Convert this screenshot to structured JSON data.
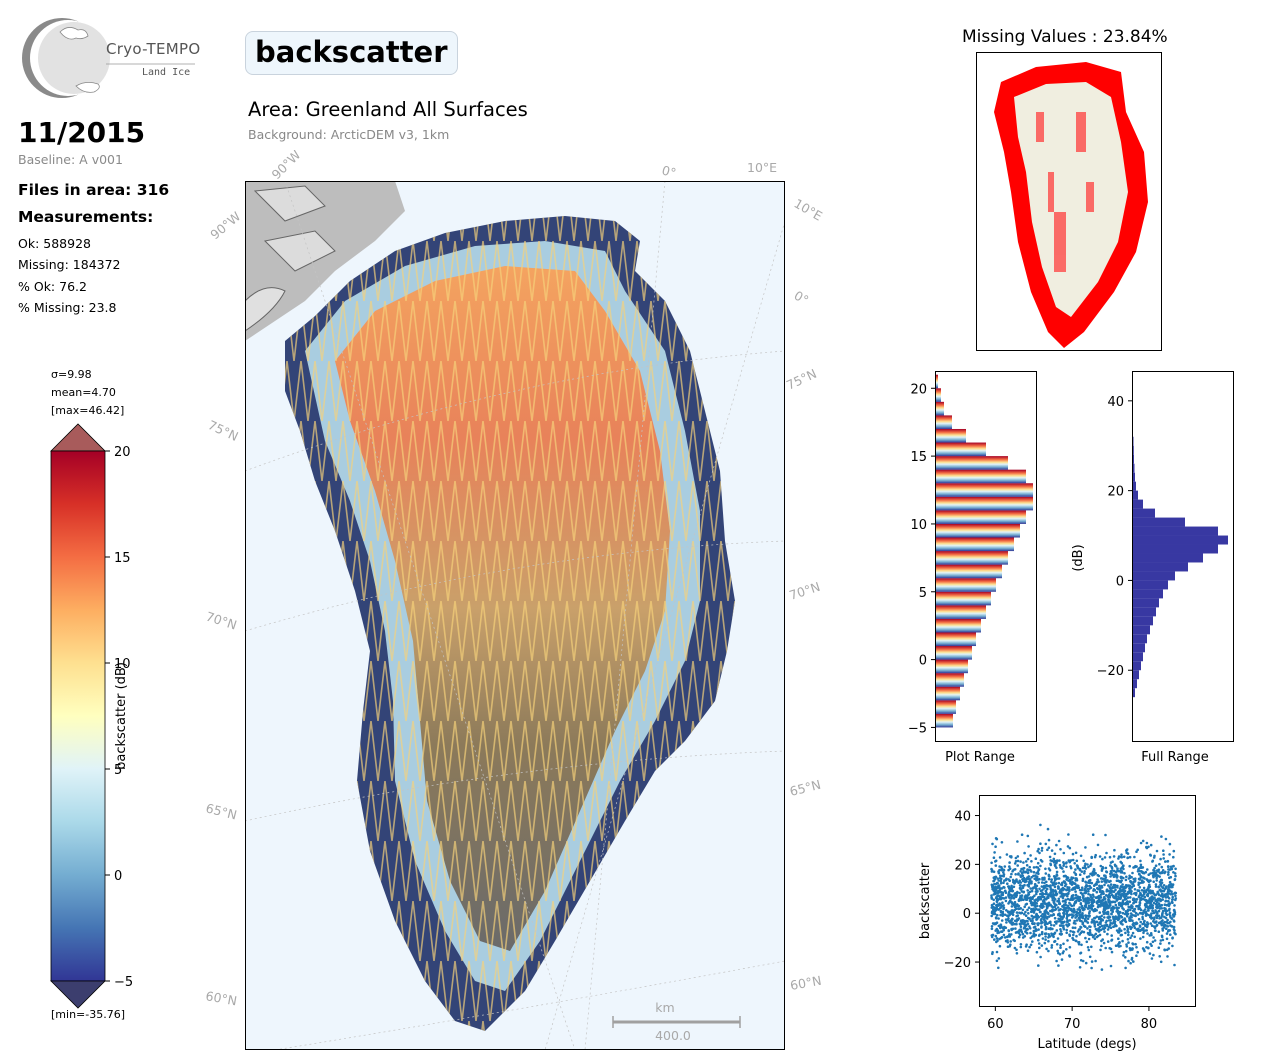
{
  "logo": {
    "title": "Cryo-TEMPO",
    "subtitle": "Land Ice"
  },
  "header": {
    "date": "11/2015",
    "baseline": "Baseline: A v001",
    "files_in_area": "Files in area: 316",
    "measurements_label": "Measurements:",
    "stats": [
      "Ok: 588928",
      "Missing: 184372",
      "% Ok: 76.2",
      "% Missing: 23.8"
    ]
  },
  "title": {
    "parameter": "backscatter",
    "area": "Area: Greenland All Surfaces",
    "background": "Background: ArcticDEM v3, 1km"
  },
  "map": {
    "graticule_labels": [
      "90°W",
      "90°W",
      "0°",
      "10°E",
      "10°E",
      "0°",
      "75°N",
      "75°N",
      "70°N",
      "70°N",
      "65°N",
      "65°N",
      "60°N",
      "60°N"
    ],
    "scalebar": {
      "unit": "km",
      "value": "400.0"
    }
  },
  "colorbar": {
    "label": "backscatter (dB)",
    "sigma": "σ=9.98",
    "mean": "mean=4.70",
    "max": "[max=46.42]",
    "min": "[min=-35.76]",
    "range": [
      -5,
      20
    ],
    "ticks": [
      "20",
      "15",
      "10",
      "5",
      "0",
      "−5"
    ],
    "colormap": "RdYlBu_r"
  },
  "missing": {
    "title": "Missing Values : 23.84%",
    "color": "#ff0000"
  },
  "chart_data": [
    {
      "type": "bar",
      "orientation": "horizontal",
      "xlabel": "Plot Range",
      "ylabel": "",
      "ylim": [
        -6,
        21.2
      ],
      "yticks": [
        20,
        15,
        10,
        5,
        0,
        -5
      ],
      "bins": [
        -5,
        -4,
        -3,
        -2,
        -1,
        0,
        1,
        2,
        3,
        4,
        5,
        6,
        7,
        8,
        9,
        10,
        11,
        12,
        13,
        14,
        15,
        16,
        17,
        18,
        19,
        20
      ],
      "values": [
        0.17,
        0.2,
        0.24,
        0.28,
        0.32,
        0.36,
        0.4,
        0.45,
        0.5,
        0.55,
        0.6,
        0.66,
        0.72,
        0.78,
        0.84,
        0.9,
        0.97,
        0.97,
        0.9,
        0.72,
        0.5,
        0.3,
        0.16,
        0.08,
        0.05,
        0.02
      ]
    },
    {
      "type": "bar",
      "orientation": "horizontal",
      "xlabel": "Full Range",
      "ylabel": "(dB)",
      "ylim": [
        -35.76,
        46.42
      ],
      "yticks": [
        40,
        20,
        0,
        -20
      ],
      "bin_width": 2,
      "bins": [
        -26,
        -24,
        -22,
        -20,
        -18,
        -16,
        -14,
        -12,
        -10,
        -8,
        -6,
        -4,
        -2,
        0,
        2,
        4,
        6,
        8,
        10,
        12,
        14,
        16,
        18,
        20,
        22,
        24,
        26,
        28,
        30
      ],
      "values": [
        0.02,
        0.04,
        0.06,
        0.08,
        0.1,
        0.12,
        0.14,
        0.17,
        0.2,
        0.23,
        0.26,
        0.3,
        0.35,
        0.42,
        0.55,
        0.7,
        0.85,
        0.95,
        0.85,
        0.52,
        0.22,
        0.1,
        0.05,
        0.03,
        0.02,
        0.015,
        0.01,
        0.008,
        0.005
      ],
      "color": "#3838a2"
    },
    {
      "type": "scatter",
      "xlabel": "Latitude (degs)",
      "ylabel": "backscatter",
      "xlim": [
        58,
        86
      ],
      "ylim": [
        -38,
        48
      ],
      "xticks": [
        60,
        70,
        80
      ],
      "yticks": [
        40,
        20,
        0,
        -20
      ],
      "x_range": [
        59.5,
        83.5
      ],
      "y_range": [
        -35.76,
        46.42
      ],
      "color": "#1f77b4"
    }
  ]
}
